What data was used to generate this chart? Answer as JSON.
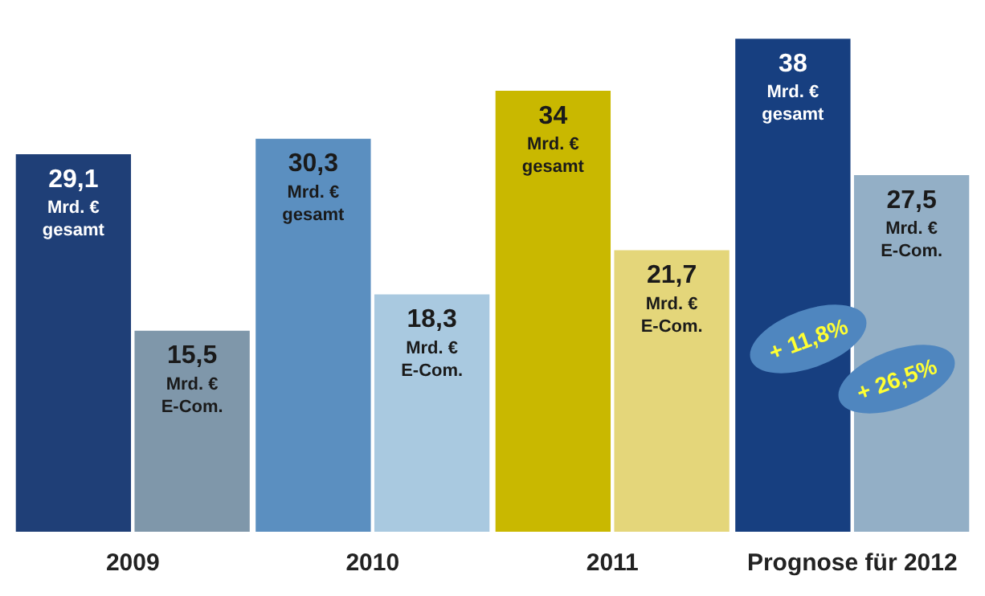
{
  "chart_data": {
    "type": "bar",
    "categories": [
      "2009",
      "2010",
      "2011",
      "Prognose für 2012"
    ],
    "series": [
      {
        "colors": [
          "#1f3f77",
          "#5b8fc0",
          "#c9b800",
          "#173f80"
        ],
        "values": [
          29.1,
          30.3,
          34,
          38
        ],
        "value_labels": [
          "29,1\nMrd. €\ngesamt",
          "30,3\nMrd. €\ngesamt",
          "34\nMrd. €\ngesamt",
          "38\nMrd. €\ngesamt"
        ]
      },
      {
        "colors": [
          "#7f97aa",
          "#a9c9e0",
          "#e4d67a",
          "#93afc6"
        ],
        "values": [
          15.5,
          18.3,
          21.7,
          27.5
        ],
        "value_labels": [
          "15,5\nMrd. €\nE-Com.",
          "18,3\nMrd. €\nE-Com.",
          "21,7\nMrd. €\nE-Com.",
          "27,5\nMrd. €\nE-Com."
        ]
      }
    ],
    "annotations": [
      "+ 11,8%",
      "+ 26,5%"
    ],
    "grid": false,
    "legend": false
  }
}
